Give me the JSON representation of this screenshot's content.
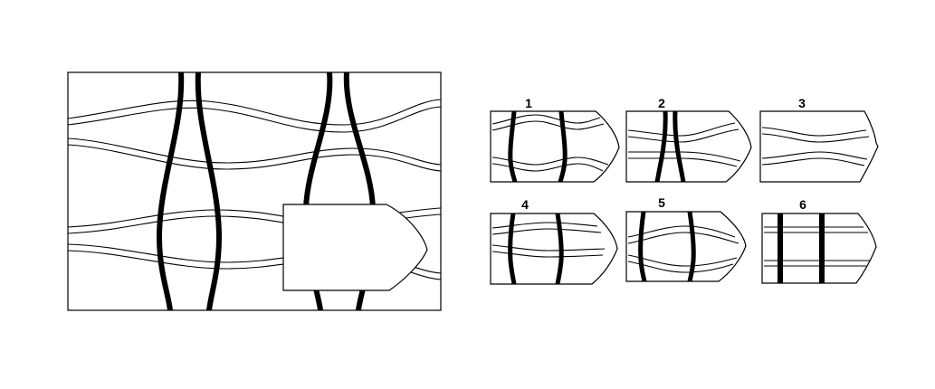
{
  "puzzle": {
    "title": "",
    "options": [
      {
        "number": "1"
      },
      {
        "number": "2"
      },
      {
        "number": "3"
      },
      {
        "number": "4"
      },
      {
        "number": "5"
      },
      {
        "number": "6"
      }
    ]
  }
}
